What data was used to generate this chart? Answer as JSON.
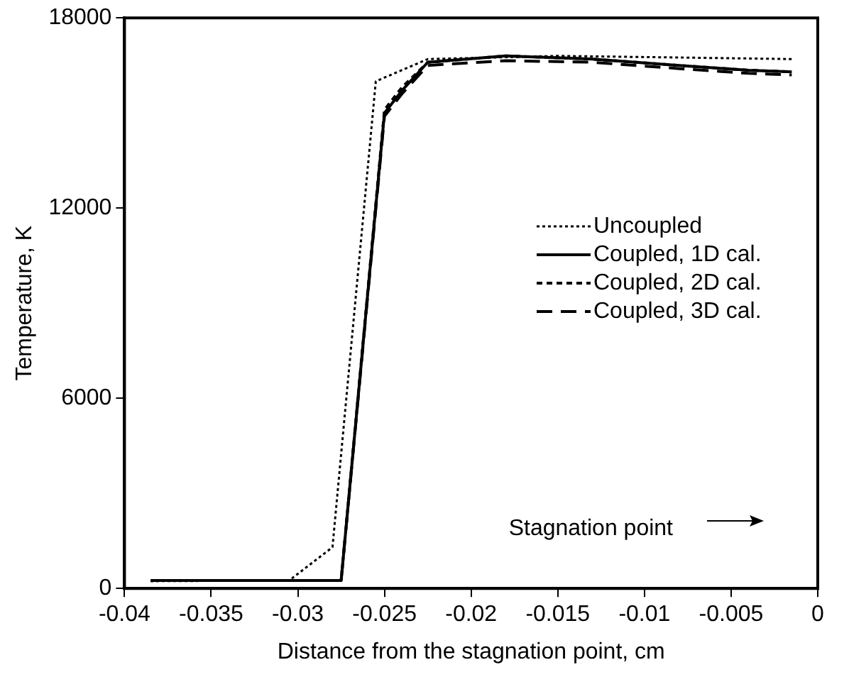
{
  "chart_data": {
    "type": "line",
    "xlabel": "Distance from the stagnation point, cm",
    "ylabel": "Temperature, K",
    "xlim": [
      -0.04,
      0
    ],
    "xticks": [
      -0.04,
      -0.035,
      -0.03,
      -0.025,
      -0.02,
      -0.015,
      -0.01,
      -0.005,
      0
    ],
    "ylim": [
      0,
      18000
    ],
    "yticks": [
      0,
      6000,
      12000,
      18000
    ],
    "grid": false,
    "legend": "right",
    "marker": "none",
    "annotations": [
      "Stagnation point"
    ],
    "series": [
      {
        "name": "Uncoupled",
        "color": "#000000",
        "line_style": "dotted",
        "x": [
          -0.0385,
          -0.0305,
          -0.028,
          -0.0255,
          -0.0225,
          -0.015,
          -0.008,
          -0.0015
        ],
        "values": [
          230,
          250,
          1300,
          16000,
          16700,
          16800,
          16750,
          16700
        ]
      },
      {
        "name": "Coupled, 1D cal.",
        "color": "#000000",
        "line_style": "solid",
        "x": [
          -0.0385,
          -0.0275,
          -0.025,
          -0.024,
          -0.0225,
          -0.018,
          -0.013,
          -0.008,
          -0.004,
          -0.0015
        ],
        "values": [
          250,
          250,
          15000,
          15700,
          16600,
          16800,
          16700,
          16500,
          16350,
          16300
        ]
      },
      {
        "name": "Coupled, 2D cal.",
        "color": "#000000",
        "line_style": "dashed",
        "x": [
          -0.0385,
          -0.0275,
          -0.025,
          -0.024,
          -0.0225,
          -0.018,
          -0.013,
          -0.008,
          -0.004,
          -0.0015
        ],
        "values": [
          250,
          250,
          15100,
          15800,
          16600,
          16800,
          16700,
          16500,
          16350,
          16300
        ]
      },
      {
        "name": "Coupled, 3D cal.",
        "color": "#000000",
        "line_style": "dashed",
        "x": [
          -0.0385,
          -0.0275,
          -0.025,
          -0.024,
          -0.0225,
          -0.018,
          -0.013,
          -0.008,
          -0.004,
          -0.0015
        ],
        "values": [
          250,
          250,
          14900,
          15600,
          16500,
          16650,
          16600,
          16400,
          16250,
          16200
        ]
      }
    ]
  }
}
